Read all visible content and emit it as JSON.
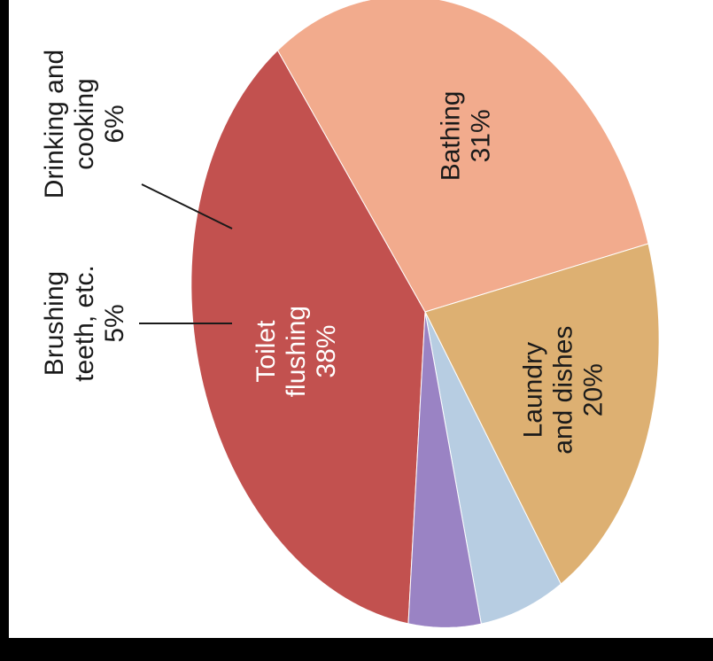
{
  "chart_data": {
    "type": "pie",
    "title": "",
    "slices": [
      {
        "label": "Toilet flushing",
        "lines": [
          "Toilet",
          "flushing",
          "38%"
        ],
        "value": 38,
        "color": "#c2514f",
        "text_color": "#ffffff"
      },
      {
        "label": "Bathing",
        "lines": [
          "Bathing",
          "31%"
        ],
        "value": 31,
        "color": "#f2ab8d",
        "text_color": "#1a1a1a"
      },
      {
        "label": "Laundry and dishes",
        "lines": [
          "Laundry",
          "and dishes",
          "20%"
        ],
        "value": 20,
        "color": "#ddb072",
        "text_color": "#1a1a1a"
      },
      {
        "label": "Drinking and cooking",
        "lines": [
          "Drinking and",
          "cooking",
          "6%"
        ],
        "value": 6,
        "color": "#b7cde2",
        "text_color": "#1a1a1a"
      },
      {
        "label": "Brushing teeth, etc.",
        "lines": [
          "Brushing",
          "teeth, etc.",
          "5%"
        ],
        "value": 5,
        "color": "#9a83c4",
        "text_color": "#1a1a1a"
      }
    ]
  }
}
